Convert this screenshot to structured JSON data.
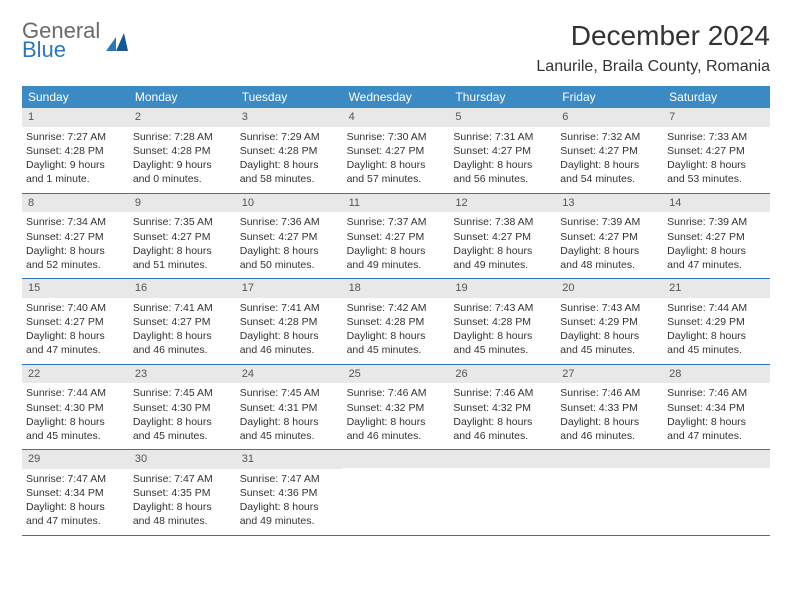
{
  "logo": {
    "line1": "General",
    "line2": "Blue"
  },
  "title": "December 2024",
  "location": "Lanurile, Braila County, Romania",
  "colors": {
    "header_bg": "#3b8ac4",
    "header_text": "#ffffff",
    "daynum_bg": "#e8e8e8",
    "accent": "#2e76b6",
    "logo_gray": "#6a6a6a"
  },
  "dows": [
    "Sunday",
    "Monday",
    "Tuesday",
    "Wednesday",
    "Thursday",
    "Friday",
    "Saturday"
  ],
  "weeks": [
    [
      {
        "n": "1",
        "sunrise": "Sunrise: 7:27 AM",
        "sunset": "Sunset: 4:28 PM",
        "daylight": "Daylight: 9 hours and 1 minute."
      },
      {
        "n": "2",
        "sunrise": "Sunrise: 7:28 AM",
        "sunset": "Sunset: 4:28 PM",
        "daylight": "Daylight: 9 hours and 0 minutes."
      },
      {
        "n": "3",
        "sunrise": "Sunrise: 7:29 AM",
        "sunset": "Sunset: 4:28 PM",
        "daylight": "Daylight: 8 hours and 58 minutes."
      },
      {
        "n": "4",
        "sunrise": "Sunrise: 7:30 AM",
        "sunset": "Sunset: 4:27 PM",
        "daylight": "Daylight: 8 hours and 57 minutes."
      },
      {
        "n": "5",
        "sunrise": "Sunrise: 7:31 AM",
        "sunset": "Sunset: 4:27 PM",
        "daylight": "Daylight: 8 hours and 56 minutes."
      },
      {
        "n": "6",
        "sunrise": "Sunrise: 7:32 AM",
        "sunset": "Sunset: 4:27 PM",
        "daylight": "Daylight: 8 hours and 54 minutes."
      },
      {
        "n": "7",
        "sunrise": "Sunrise: 7:33 AM",
        "sunset": "Sunset: 4:27 PM",
        "daylight": "Daylight: 8 hours and 53 minutes."
      }
    ],
    [
      {
        "n": "8",
        "sunrise": "Sunrise: 7:34 AM",
        "sunset": "Sunset: 4:27 PM",
        "daylight": "Daylight: 8 hours and 52 minutes."
      },
      {
        "n": "9",
        "sunrise": "Sunrise: 7:35 AM",
        "sunset": "Sunset: 4:27 PM",
        "daylight": "Daylight: 8 hours and 51 minutes."
      },
      {
        "n": "10",
        "sunrise": "Sunrise: 7:36 AM",
        "sunset": "Sunset: 4:27 PM",
        "daylight": "Daylight: 8 hours and 50 minutes."
      },
      {
        "n": "11",
        "sunrise": "Sunrise: 7:37 AM",
        "sunset": "Sunset: 4:27 PM",
        "daylight": "Daylight: 8 hours and 49 minutes."
      },
      {
        "n": "12",
        "sunrise": "Sunrise: 7:38 AM",
        "sunset": "Sunset: 4:27 PM",
        "daylight": "Daylight: 8 hours and 49 minutes."
      },
      {
        "n": "13",
        "sunrise": "Sunrise: 7:39 AM",
        "sunset": "Sunset: 4:27 PM",
        "daylight": "Daylight: 8 hours and 48 minutes."
      },
      {
        "n": "14",
        "sunrise": "Sunrise: 7:39 AM",
        "sunset": "Sunset: 4:27 PM",
        "daylight": "Daylight: 8 hours and 47 minutes."
      }
    ],
    [
      {
        "n": "15",
        "sunrise": "Sunrise: 7:40 AM",
        "sunset": "Sunset: 4:27 PM",
        "daylight": "Daylight: 8 hours and 47 minutes."
      },
      {
        "n": "16",
        "sunrise": "Sunrise: 7:41 AM",
        "sunset": "Sunset: 4:27 PM",
        "daylight": "Daylight: 8 hours and 46 minutes."
      },
      {
        "n": "17",
        "sunrise": "Sunrise: 7:41 AM",
        "sunset": "Sunset: 4:28 PM",
        "daylight": "Daylight: 8 hours and 46 minutes."
      },
      {
        "n": "18",
        "sunrise": "Sunrise: 7:42 AM",
        "sunset": "Sunset: 4:28 PM",
        "daylight": "Daylight: 8 hours and 45 minutes."
      },
      {
        "n": "19",
        "sunrise": "Sunrise: 7:43 AM",
        "sunset": "Sunset: 4:28 PM",
        "daylight": "Daylight: 8 hours and 45 minutes."
      },
      {
        "n": "20",
        "sunrise": "Sunrise: 7:43 AM",
        "sunset": "Sunset: 4:29 PM",
        "daylight": "Daylight: 8 hours and 45 minutes."
      },
      {
        "n": "21",
        "sunrise": "Sunrise: 7:44 AM",
        "sunset": "Sunset: 4:29 PM",
        "daylight": "Daylight: 8 hours and 45 minutes."
      }
    ],
    [
      {
        "n": "22",
        "sunrise": "Sunrise: 7:44 AM",
        "sunset": "Sunset: 4:30 PM",
        "daylight": "Daylight: 8 hours and 45 minutes."
      },
      {
        "n": "23",
        "sunrise": "Sunrise: 7:45 AM",
        "sunset": "Sunset: 4:30 PM",
        "daylight": "Daylight: 8 hours and 45 minutes."
      },
      {
        "n": "24",
        "sunrise": "Sunrise: 7:45 AM",
        "sunset": "Sunset: 4:31 PM",
        "daylight": "Daylight: 8 hours and 45 minutes."
      },
      {
        "n": "25",
        "sunrise": "Sunrise: 7:46 AM",
        "sunset": "Sunset: 4:32 PM",
        "daylight": "Daylight: 8 hours and 46 minutes."
      },
      {
        "n": "26",
        "sunrise": "Sunrise: 7:46 AM",
        "sunset": "Sunset: 4:32 PM",
        "daylight": "Daylight: 8 hours and 46 minutes."
      },
      {
        "n": "27",
        "sunrise": "Sunrise: 7:46 AM",
        "sunset": "Sunset: 4:33 PM",
        "daylight": "Daylight: 8 hours and 46 minutes."
      },
      {
        "n": "28",
        "sunrise": "Sunrise: 7:46 AM",
        "sunset": "Sunset: 4:34 PM",
        "daylight": "Daylight: 8 hours and 47 minutes."
      }
    ],
    [
      {
        "n": "29",
        "sunrise": "Sunrise: 7:47 AM",
        "sunset": "Sunset: 4:34 PM",
        "daylight": "Daylight: 8 hours and 47 minutes."
      },
      {
        "n": "30",
        "sunrise": "Sunrise: 7:47 AM",
        "sunset": "Sunset: 4:35 PM",
        "daylight": "Daylight: 8 hours and 48 minutes."
      },
      {
        "n": "31",
        "sunrise": "Sunrise: 7:47 AM",
        "sunset": "Sunset: 4:36 PM",
        "daylight": "Daylight: 8 hours and 49 minutes."
      },
      null,
      null,
      null,
      null
    ]
  ]
}
